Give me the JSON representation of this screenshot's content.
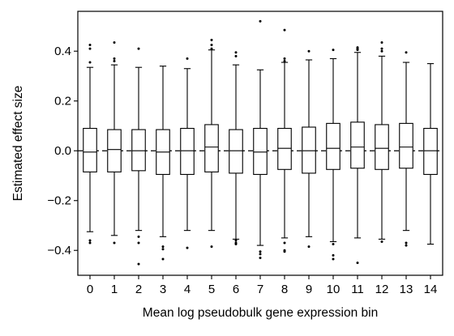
{
  "chart_data": {
    "type": "box",
    "xlabel": "Mean log pseudobulk gene expression bin",
    "ylabel": "Estimated effect size",
    "ylim": [
      -0.5,
      0.56
    ],
    "yticks": [
      -0.4,
      -0.2,
      0.0,
      0.2,
      0.4
    ],
    "ytick_labels": [
      "−0.4",
      "−0.2",
      "0.0",
      "0.2",
      "0.4"
    ],
    "categories": [
      "0",
      "1",
      "2",
      "3",
      "4",
      "5",
      "6",
      "7",
      "8",
      "9",
      "10",
      "11",
      "12",
      "13",
      "14"
    ],
    "reference_line": {
      "y": 0.0,
      "style": "dashed"
    },
    "grid": false,
    "boxes": [
      {
        "q1": -0.085,
        "median": -0.005,
        "q3": 0.09,
        "whisker_low": -0.325,
        "whisker_high": 0.335,
        "outliers": [
          0.425,
          0.41,
          0.355,
          -0.36,
          -0.37
        ]
      },
      {
        "q1": -0.085,
        "median": 0.005,
        "q3": 0.085,
        "whisker_low": -0.34,
        "whisker_high": 0.345,
        "outliers": [
          0.435,
          0.37,
          0.36,
          -0.37
        ]
      },
      {
        "q1": -0.08,
        "median": 0.0,
        "q3": 0.085,
        "whisker_low": -0.32,
        "whisker_high": 0.335,
        "outliers": [
          0.41,
          -0.345,
          -0.37,
          -0.455
        ]
      },
      {
        "q1": -0.095,
        "median": -0.005,
        "q3": 0.085,
        "whisker_low": -0.345,
        "whisker_high": 0.34,
        "outliers": [
          -0.385,
          -0.395,
          -0.435
        ]
      },
      {
        "q1": -0.095,
        "median": 0.0,
        "q3": 0.09,
        "whisker_low": -0.32,
        "whisker_high": 0.33,
        "outliers": [
          0.37,
          -0.39
        ]
      },
      {
        "q1": -0.085,
        "median": 0.015,
        "q3": 0.105,
        "whisker_low": -0.32,
        "whisker_high": 0.405,
        "outliers": [
          0.445,
          0.425,
          0.41,
          -0.385
        ]
      },
      {
        "q1": -0.09,
        "median": 0.0,
        "q3": 0.085,
        "whisker_low": -0.355,
        "whisker_high": 0.345,
        "outliers": [
          0.395,
          0.38,
          -0.36,
          -0.37,
          -0.375
        ]
      },
      {
        "q1": -0.095,
        "median": -0.005,
        "q3": 0.09,
        "whisker_low": -0.38,
        "whisker_high": 0.325,
        "outliers": [
          0.52,
          -0.405,
          -0.415,
          -0.43
        ]
      },
      {
        "q1": -0.075,
        "median": 0.01,
        "q3": 0.09,
        "whisker_low": -0.35,
        "whisker_high": 0.355,
        "outliers": [
          0.485,
          0.37,
          0.36,
          -0.37,
          -0.4,
          -0.405
        ]
      },
      {
        "q1": -0.09,
        "median": 0.0,
        "q3": 0.095,
        "whisker_low": -0.345,
        "whisker_high": 0.365,
        "outliers": [
          0.4,
          -0.385
        ]
      },
      {
        "q1": -0.075,
        "median": 0.01,
        "q3": 0.11,
        "whisker_low": -0.365,
        "whisker_high": 0.37,
        "outliers": [
          0.405,
          -0.375,
          -0.42,
          -0.435
        ]
      },
      {
        "q1": -0.07,
        "median": 0.015,
        "q3": 0.115,
        "whisker_low": -0.35,
        "whisker_high": 0.395,
        "outliers": [
          0.415,
          0.41,
          0.405,
          -0.45
        ]
      },
      {
        "q1": -0.075,
        "median": 0.01,
        "q3": 0.105,
        "whisker_low": -0.355,
        "whisker_high": 0.38,
        "outliers": [
          0.435,
          0.41,
          0.4,
          -0.365
        ]
      },
      {
        "q1": -0.07,
        "median": 0.015,
        "q3": 0.11,
        "whisker_low": -0.32,
        "whisker_high": 0.355,
        "outliers": [
          0.395,
          -0.37,
          -0.38
        ]
      },
      {
        "q1": -0.095,
        "median": 0.0,
        "q3": 0.09,
        "whisker_low": -0.375,
        "whisker_high": 0.35,
        "outliers": []
      }
    ]
  }
}
